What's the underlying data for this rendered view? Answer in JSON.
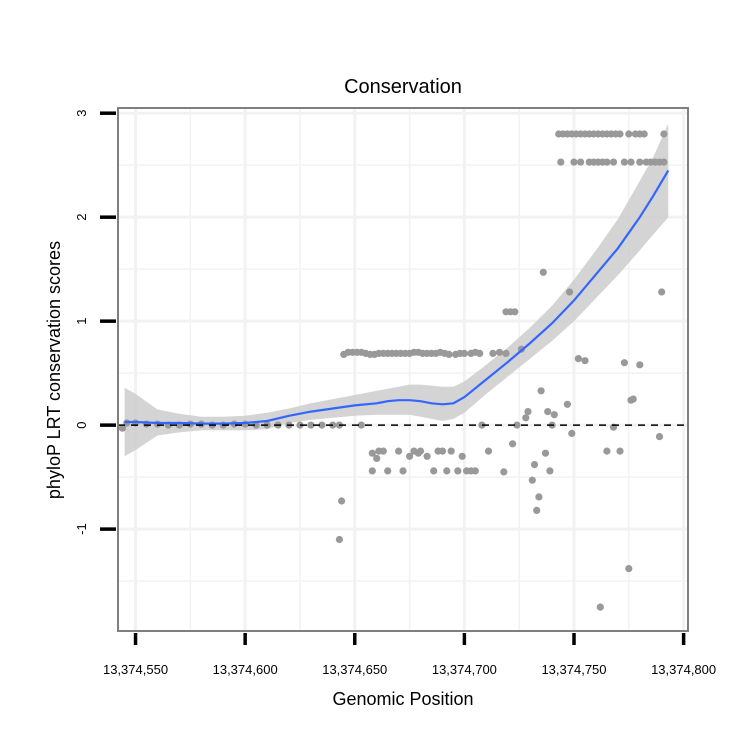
{
  "chart_data": {
    "type": "scatter",
    "title": "Conservation",
    "xlabel": "Genomic Position",
    "ylabel": "phyloP LRT conservation scores",
    "xlim": [
      13374542,
      13374802
    ],
    "ylim": [
      -1.98,
      3.05
    ],
    "x_ticks": [
      13374550,
      13374600,
      13374650,
      13374700,
      13374750,
      13374800
    ],
    "x_tick_labels": [
      "13,374,550",
      "13,374,600",
      "13,374,650",
      "13,374,700",
      "13,374,750",
      "13,374,800"
    ],
    "y_ticks": [
      -1,
      0,
      1,
      2,
      3
    ],
    "y_tick_labels": [
      "-1",
      "0",
      "1",
      "2",
      "3"
    ],
    "grid": true,
    "reference_line": {
      "y": 0,
      "style": "dashed"
    },
    "colors": {
      "points": "#999999",
      "smooth": "#3366FF",
      "ribbon": "#cccccc",
      "panel_border": "#7f7f7f",
      "grid": "#f2f2f2",
      "reference": "#000000"
    },
    "series": [
      {
        "name": "phyloP scores",
        "points": [
          [
            13374544,
            -0.03
          ],
          [
            13374546,
            0.02
          ],
          [
            13374550,
            0.02
          ],
          [
            13374555,
            0.01
          ],
          [
            13374560,
            0.01
          ],
          [
            13374565,
            0.0
          ],
          [
            13374570,
            0.0
          ],
          [
            13374575,
            0.01
          ],
          [
            13374580,
            0.01
          ],
          [
            13374585,
            0.0
          ],
          [
            13374590,
            0.0
          ],
          [
            13374595,
            0.01
          ],
          [
            13374600,
            0.01
          ],
          [
            13374605,
            0.0
          ],
          [
            13374610,
            0.0
          ],
          [
            13374615,
            0.0
          ],
          [
            13374620,
            0.0
          ],
          [
            13374625,
            0.0
          ],
          [
            13374630,
            0.0
          ],
          [
            13374635,
            0.0
          ],
          [
            13374640,
            0.0
          ],
          [
            13374643,
            0.0
          ],
          [
            13374644,
            -0.73
          ],
          [
            13374643,
            -1.1
          ],
          [
            13374645,
            0.68
          ],
          [
            13374647,
            0.7
          ],
          [
            13374649,
            0.7
          ],
          [
            13374651,
            0.7
          ],
          [
            13374653,
            0.7
          ],
          [
            13374655,
            0.69
          ],
          [
            13374657,
            0.68
          ],
          [
            13374659,
            0.68
          ],
          [
            13374661,
            0.69
          ],
          [
            13374663,
            0.69
          ],
          [
            13374665,
            0.69
          ],
          [
            13374667,
            0.69
          ],
          [
            13374669,
            0.69
          ],
          [
            13374671,
            0.69
          ],
          [
            13374673,
            0.69
          ],
          [
            13374675,
            0.69
          ],
          [
            13374677,
            0.7
          ],
          [
            13374679,
            0.7
          ],
          [
            13374681,
            0.69
          ],
          [
            13374683,
            0.69
          ],
          [
            13374685,
            0.69
          ],
          [
            13374687,
            0.69
          ],
          [
            13374689,
            0.7
          ],
          [
            13374691,
            0.69
          ],
          [
            13374693,
            0.68
          ],
          [
            13374696,
            0.68
          ],
          [
            13374698,
            0.69
          ],
          [
            13374700,
            0.69
          ],
          [
            13374703,
            0.69
          ],
          [
            13374705,
            0.7
          ],
          [
            13374707,
            0.69
          ],
          [
            13374713,
            0.69
          ],
          [
            13374716,
            0.7
          ],
          [
            13374719,
            0.69
          ],
          [
            13374653,
            0.0
          ],
          [
            13374658,
            -0.27
          ],
          [
            13374660,
            -0.32
          ],
          [
            13374661,
            -0.25
          ],
          [
            13374663,
            -0.25
          ],
          [
            13374658,
            -0.44
          ],
          [
            13374665,
            -0.44
          ],
          [
            13374670,
            -0.25
          ],
          [
            13374672,
            -0.44
          ],
          [
            13374675,
            -0.3
          ],
          [
            13374677,
            -0.25
          ],
          [
            13374679,
            -0.27
          ],
          [
            13374680,
            -0.25
          ],
          [
            13374683,
            -0.3
          ],
          [
            13374686,
            -0.44
          ],
          [
            13374688,
            -0.25
          ],
          [
            13374690,
            -0.25
          ],
          [
            13374692,
            -0.44
          ],
          [
            13374694,
            -0.25
          ],
          [
            13374697,
            -0.44
          ],
          [
            13374699,
            -0.3
          ],
          [
            13374701,
            -0.44
          ],
          [
            13374703,
            -0.44
          ],
          [
            13374705,
            -0.44
          ],
          [
            13374708,
            0.0
          ],
          [
            13374711,
            -0.25
          ],
          [
            13374719,
            1.09
          ],
          [
            13374721,
            1.09
          ],
          [
            13374723,
            1.09
          ],
          [
            13374724,
            0.0
          ],
          [
            13374726,
            0.73
          ],
          [
            13374728,
            0.07
          ],
          [
            13374729,
            0.13
          ],
          [
            13374731,
            -0.53
          ],
          [
            13374732,
            -0.38
          ],
          [
            13374733,
            -0.82
          ],
          [
            13374734,
            -0.69
          ],
          [
            13374735,
            0.33
          ],
          [
            13374736,
            1.47
          ],
          [
            13374737,
            -0.27
          ],
          [
            13374738,
            0.13
          ],
          [
            13374739,
            -0.44
          ],
          [
            13374740,
            0.0
          ],
          [
            13374741,
            0.1
          ],
          [
            13374722,
            -0.18
          ],
          [
            13374718,
            -0.45
          ],
          [
            13374743,
            2.8
          ],
          [
            13374745,
            2.8
          ],
          [
            13374747,
            2.8
          ],
          [
            13374749,
            2.8
          ],
          [
            13374751,
            2.8
          ],
          [
            13374753,
            2.8
          ],
          [
            13374755,
            2.8
          ],
          [
            13374757,
            2.8
          ],
          [
            13374759,
            2.8
          ],
          [
            13374761,
            2.8
          ],
          [
            13374763,
            2.8
          ],
          [
            13374765,
            2.8
          ],
          [
            13374767,
            2.8
          ],
          [
            13374769,
            2.8
          ],
          [
            13374771,
            2.8
          ],
          [
            13374775,
            2.8
          ],
          [
            13374778,
            2.8
          ],
          [
            13374780,
            2.8
          ],
          [
            13374782,
            2.8
          ],
          [
            13374791,
            2.8
          ],
          [
            13374744,
            2.53
          ],
          [
            13374750,
            2.53
          ],
          [
            13374753,
            2.53
          ],
          [
            13374757,
            2.53
          ],
          [
            13374759,
            2.53
          ],
          [
            13374761,
            2.53
          ],
          [
            13374763,
            2.53
          ],
          [
            13374765,
            2.53
          ],
          [
            13374768,
            2.53
          ],
          [
            13374773,
            2.53
          ],
          [
            13374776,
            2.53
          ],
          [
            13374780,
            2.53
          ],
          [
            13374783,
            2.53
          ],
          [
            13374785,
            2.53
          ],
          [
            13374787,
            2.53
          ],
          [
            13374789,
            2.53
          ],
          [
            13374791,
            2.53
          ],
          [
            13374748,
            1.28
          ],
          [
            13374790,
            1.28
          ],
          [
            13374752,
            0.64
          ],
          [
            13374755,
            0.62
          ],
          [
            13374773,
            0.6
          ],
          [
            13374780,
            0.58
          ],
          [
            13374747,
            0.2
          ],
          [
            13374776,
            0.24
          ],
          [
            13374777,
            0.25
          ],
          [
            13374749,
            -0.08
          ],
          [
            13374765,
            -0.25
          ],
          [
            13374768,
            -0.02
          ],
          [
            13374771,
            -0.25
          ],
          [
            13374789,
            -0.11
          ],
          [
            13374775,
            -1.38
          ],
          [
            13374762,
            -1.75
          ]
        ]
      },
      {
        "name": "loess fit",
        "line": [
          [
            13374545,
            0.03
          ],
          [
            13374550,
            0.03
          ],
          [
            13374560,
            0.02
          ],
          [
            13374570,
            0.02
          ],
          [
            13374580,
            0.015
          ],
          [
            13374590,
            0.015
          ],
          [
            13374600,
            0.02
          ],
          [
            13374610,
            0.04
          ],
          [
            13374620,
            0.09
          ],
          [
            13374630,
            0.13
          ],
          [
            13374640,
            0.16
          ],
          [
            13374650,
            0.19
          ],
          [
            13374660,
            0.21
          ],
          [
            13374665,
            0.23
          ],
          [
            13374670,
            0.24
          ],
          [
            13374675,
            0.24
          ],
          [
            13374680,
            0.23
          ],
          [
            13374685,
            0.21
          ],
          [
            13374690,
            0.2
          ],
          [
            13374695,
            0.21
          ],
          [
            13374700,
            0.27
          ],
          [
            13374710,
            0.44
          ],
          [
            13374720,
            0.61
          ],
          [
            13374730,
            0.79
          ],
          [
            13374740,
            0.98
          ],
          [
            13374750,
            1.2
          ],
          [
            13374760,
            1.45
          ],
          [
            13374770,
            1.7
          ],
          [
            13374780,
            2.0
          ],
          [
            13374786,
            2.2
          ],
          [
            13374793,
            2.45
          ]
        ],
        "ribbon_upper": [
          [
            13374545,
            0.36
          ],
          [
            13374550,
            0.3
          ],
          [
            13374560,
            0.15
          ],
          [
            13374570,
            0.11
          ],
          [
            13374580,
            0.08
          ],
          [
            13374590,
            0.08
          ],
          [
            13374600,
            0.09
          ],
          [
            13374610,
            0.12
          ],
          [
            13374620,
            0.16
          ],
          [
            13374630,
            0.21
          ],
          [
            13374640,
            0.25
          ],
          [
            13374650,
            0.29
          ],
          [
            13374660,
            0.33
          ],
          [
            13374665,
            0.35
          ],
          [
            13374670,
            0.37
          ],
          [
            13374675,
            0.39
          ],
          [
            13374680,
            0.39
          ],
          [
            13374685,
            0.38
          ],
          [
            13374690,
            0.37
          ],
          [
            13374695,
            0.37
          ],
          [
            13374700,
            0.42
          ],
          [
            13374710,
            0.58
          ],
          [
            13374720,
            0.75
          ],
          [
            13374730,
            0.94
          ],
          [
            13374740,
            1.15
          ],
          [
            13374750,
            1.4
          ],
          [
            13374760,
            1.68
          ],
          [
            13374770,
            1.98
          ],
          [
            13374780,
            2.35
          ],
          [
            13374786,
            2.57
          ],
          [
            13374793,
            2.9
          ]
        ],
        "ribbon_lower": [
          [
            13374545,
            -0.3
          ],
          [
            13374550,
            -0.24
          ],
          [
            13374560,
            -0.1
          ],
          [
            13374570,
            -0.07
          ],
          [
            13374580,
            -0.05
          ],
          [
            13374590,
            -0.05
          ],
          [
            13374600,
            -0.05
          ],
          [
            13374610,
            -0.04
          ],
          [
            13374620,
            0.02
          ],
          [
            13374630,
            0.05
          ],
          [
            13374640,
            0.07
          ],
          [
            13374650,
            0.09
          ],
          [
            13374660,
            0.1
          ],
          [
            13374665,
            0.1
          ],
          [
            13374670,
            0.1
          ],
          [
            13374675,
            0.1
          ],
          [
            13374680,
            0.08
          ],
          [
            13374685,
            0.06
          ],
          [
            13374690,
            0.04
          ],
          [
            13374695,
            0.06
          ],
          [
            13374700,
            0.12
          ],
          [
            13374710,
            0.3
          ],
          [
            13374720,
            0.47
          ],
          [
            13374730,
            0.64
          ],
          [
            13374740,
            0.81
          ],
          [
            13374750,
            1.0
          ],
          [
            13374760,
            1.22
          ],
          [
            13374770,
            1.44
          ],
          [
            13374780,
            1.68
          ],
          [
            13374786,
            1.83
          ],
          [
            13374793,
            2.0
          ]
        ]
      }
    ]
  }
}
